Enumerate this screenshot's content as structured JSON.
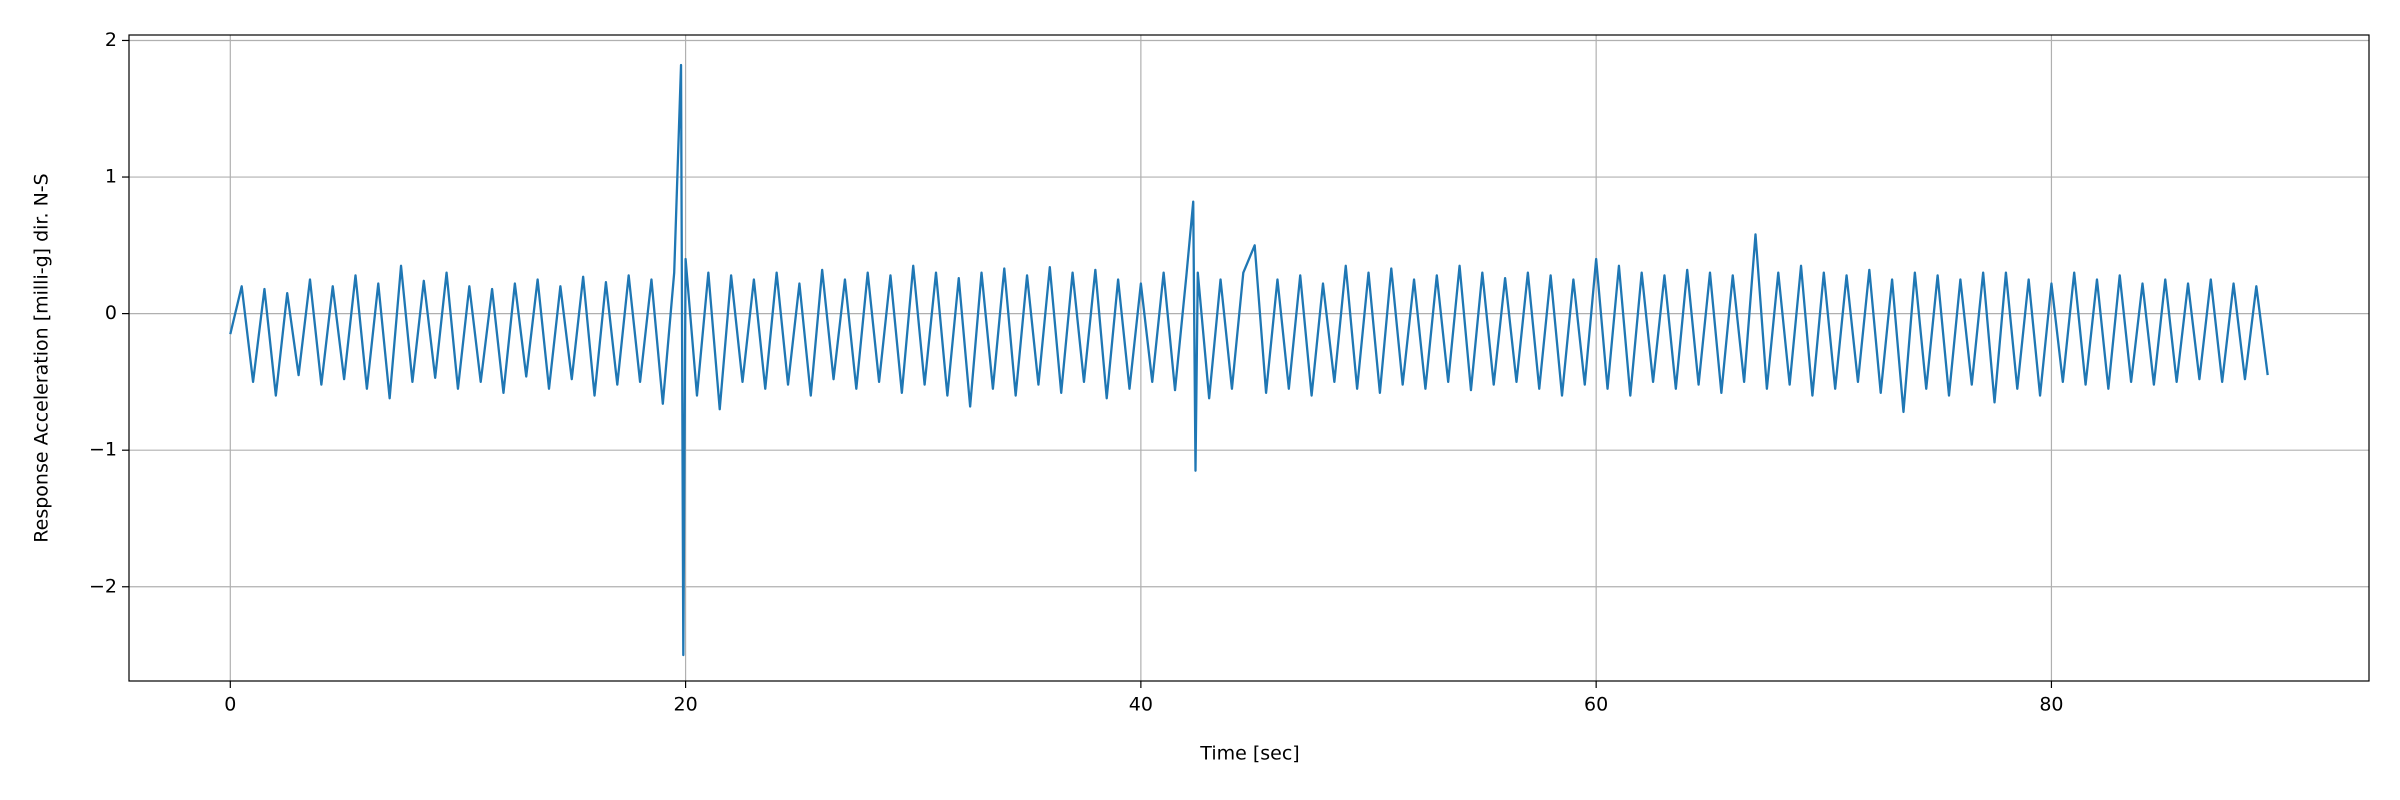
{
  "chart_data": {
    "type": "line",
    "x_label": "Time [sec]",
    "y_label": "Response Acceleration [milli-g] dir. N-S",
    "color": "#1f77b4",
    "grid": true,
    "xlim": [
      -4.45,
      93.95
    ],
    "ylim": [
      -2.69,
      2.04
    ],
    "xticks": [
      0,
      20,
      40,
      60,
      80
    ],
    "yticks": [
      {
        "value": -2,
        "label": "−2"
      },
      {
        "value": -1,
        "label": "−1"
      },
      0,
      1,
      2
    ],
    "x": [
      0,
      0.5,
      1,
      1.5,
      2,
      2.5,
      3,
      3.5,
      4,
      4.5,
      5,
      5.5,
      6,
      6.5,
      7,
      7.5,
      8,
      8.5,
      9,
      9.5,
      10,
      10.5,
      11,
      11.5,
      12,
      12.5,
      13,
      13.5,
      14,
      14.5,
      15,
      15.5,
      16,
      16.5,
      17,
      17.5,
      18,
      18.5,
      19,
      19.5,
      19.8,
      19.9,
      20,
      20.5,
      21,
      21.5,
      22,
      22.5,
      23,
      23.5,
      24,
      24.5,
      25,
      25.5,
      26,
      26.5,
      27,
      27.5,
      28,
      28.5,
      29,
      29.5,
      30,
      30.5,
      31,
      31.5,
      32,
      32.5,
      33,
      33.5,
      34,
      34.5,
      35,
      35.5,
      36,
      36.5,
      37,
      37.5,
      38,
      38.5,
      39,
      39.5,
      40,
      40.5,
      41,
      41.5,
      42,
      42.3,
      42.4,
      42.5,
      43,
      43.5,
      44,
      44.5,
      45,
      45.5,
      46,
      46.5,
      47,
      47.5,
      48,
      48.5,
      49,
      49.5,
      50,
      50.5,
      51,
      51.5,
      52,
      52.5,
      53,
      53.5,
      54,
      54.5,
      55,
      55.5,
      56,
      56.5,
      57,
      57.5,
      58,
      58.5,
      59,
      59.5,
      60,
      60.5,
      61,
      61.5,
      62,
      62.5,
      63,
      63.5,
      64,
      64.5,
      65,
      65.5,
      66,
      66.5,
      67,
      67.5,
      68,
      68.5,
      69,
      69.5,
      70,
      70.5,
      71,
      71.5,
      72,
      72.5,
      73,
      73.5,
      74,
      74.5,
      75,
      75.5,
      76,
      76.5,
      77,
      77.5,
      78,
      78.5,
      79,
      79.5,
      80,
      80.5,
      81,
      81.5,
      82,
      82.5,
      83,
      83.5,
      84,
      84.5,
      85,
      85.5,
      86,
      86.5,
      87,
      87.5,
      88,
      88.5,
      89,
      89.5
    ],
    "values": [
      -0.15,
      0.2,
      -0.5,
      0.18,
      -0.6,
      0.15,
      -0.45,
      0.25,
      -0.52,
      0.2,
      -0.48,
      0.28,
      -0.55,
      0.22,
      -0.62,
      0.35,
      -0.5,
      0.24,
      -0.47,
      0.3,
      -0.55,
      0.2,
      -0.5,
      0.18,
      -0.58,
      0.22,
      -0.46,
      0.25,
      -0.55,
      0.2,
      -0.48,
      0.27,
      -0.6,
      0.23,
      -0.52,
      0.28,
      -0.5,
      0.25,
      -0.66,
      0.3,
      1.82,
      -2.5,
      0.4,
      -0.6,
      0.3,
      -0.7,
      0.28,
      -0.5,
      0.25,
      -0.55,
      0.3,
      -0.52,
      0.22,
      -0.6,
      0.32,
      -0.48,
      0.25,
      -0.55,
      0.3,
      -0.5,
      0.28,
      -0.58,
      0.35,
      -0.52,
      0.3,
      -0.6,
      0.26,
      -0.68,
      0.3,
      -0.55,
      0.33,
      -0.6,
      0.28,
      -0.52,
      0.34,
      -0.58,
      0.3,
      -0.5,
      0.32,
      -0.62,
      0.25,
      -0.55,
      0.22,
      -0.5,
      0.3,
      -0.56,
      0.28,
      0.82,
      -1.15,
      0.3,
      -0.62,
      0.25,
      -0.55,
      0.3,
      0.5,
      -0.58,
      0.25,
      -0.55,
      0.28,
      -0.6,
      0.22,
      -0.5,
      0.35,
      -0.55,
      0.3,
      -0.58,
      0.33,
      -0.52,
      0.25,
      -0.55,
      0.28,
      -0.5,
      0.35,
      -0.56,
      0.3,
      -0.52,
      0.26,
      -0.5,
      0.3,
      -0.55,
      0.28,
      -0.6,
      0.25,
      -0.52,
      0.4,
      -0.55,
      0.35,
      -0.6,
      0.3,
      -0.5,
      0.28,
      -0.55,
      0.32,
      -0.52,
      0.3,
      -0.58,
      0.28,
      -0.5,
      0.58,
      -0.55,
      0.3,
      -0.52,
      0.35,
      -0.6,
      0.3,
      -0.55,
      0.28,
      -0.5,
      0.32,
      -0.58,
      0.25,
      -0.72,
      0.3,
      -0.55,
      0.28,
      -0.6,
      0.25,
      -0.52,
      0.3,
      -0.65,
      0.3,
      -0.55,
      0.25,
      -0.6,
      0.22,
      -0.5,
      0.3,
      -0.52,
      0.25,
      -0.55,
      0.28,
      -0.5,
      0.22,
      -0.52,
      0.25,
      -0.5,
      0.22,
      -0.48,
      0.25,
      -0.5,
      0.22,
      -0.48,
      0.2,
      -0.45
    ]
  }
}
